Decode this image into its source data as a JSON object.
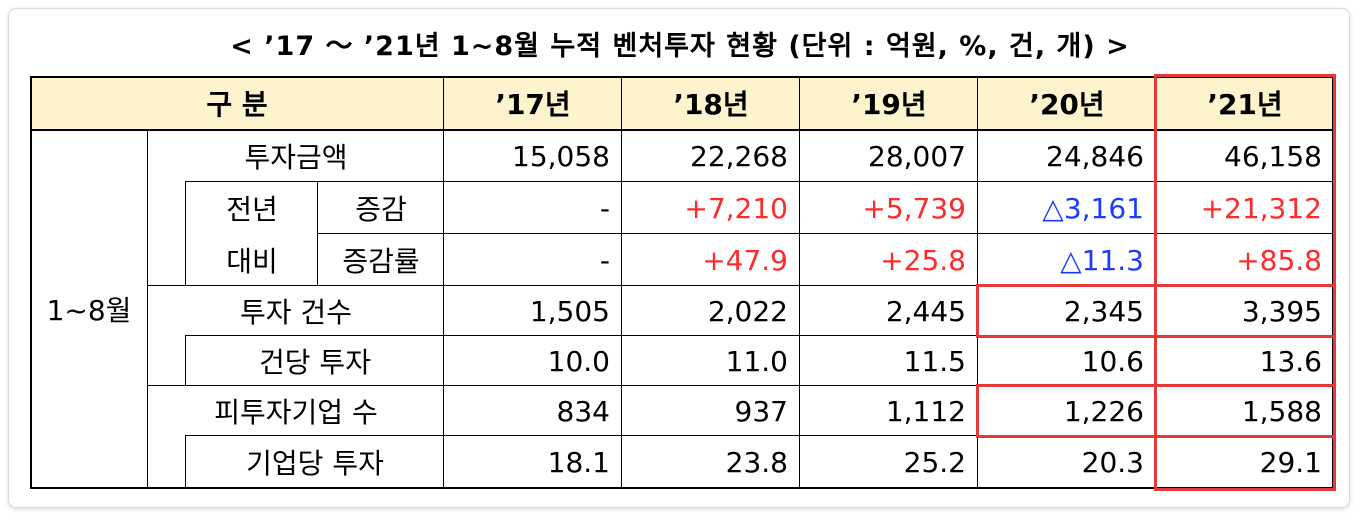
{
  "title": "< ’17 ～ ’21년 1~8월 누적 벤처투자 현황 (단위 : 억원, %, 건, 개) >",
  "header": {
    "category": "구  분",
    "years": [
      "’17년",
      "’18년",
      "’19년",
      "’20년",
      "’21년"
    ]
  },
  "period_label": "1~8월",
  "rows": {
    "amount": {
      "label": "투자금액",
      "values": [
        "15,058",
        "22,268",
        "28,007",
        "24,846",
        "46,158"
      ]
    },
    "yoy_label_1": "전년",
    "yoy_label_2": "대비",
    "change": {
      "label": "증감",
      "values": [
        "-",
        "+7,210",
        "+5,739",
        "△3,161",
        "+21,312"
      ]
    },
    "change_rate": {
      "label": "증감률",
      "values": [
        "-",
        "+47.9",
        "+25.8",
        "△11.3",
        "+85.8"
      ]
    },
    "count": {
      "label": "투자 건수",
      "values": [
        "1,505",
        "2,022",
        "2,445",
        "2,345",
        "3,395"
      ]
    },
    "per_deal": {
      "label": "건당 투자",
      "values": [
        "10.0",
        "11.0",
        "11.5",
        "10.6",
        "13.6"
      ]
    },
    "companies": {
      "label": "피투자기업 수",
      "values": [
        "834",
        "937",
        "1,112",
        "1,226",
        "1,588"
      ]
    },
    "per_company": {
      "label": "기업당 투자",
      "values": [
        "18.1",
        "23.8",
        "25.2",
        "20.3",
        "29.1"
      ]
    }
  },
  "colors": {
    "increase": "#ff2a2a",
    "decrease": "#1a3cff",
    "highlight_box": "#e53838",
    "header_bg": "#fdf3cd"
  }
}
